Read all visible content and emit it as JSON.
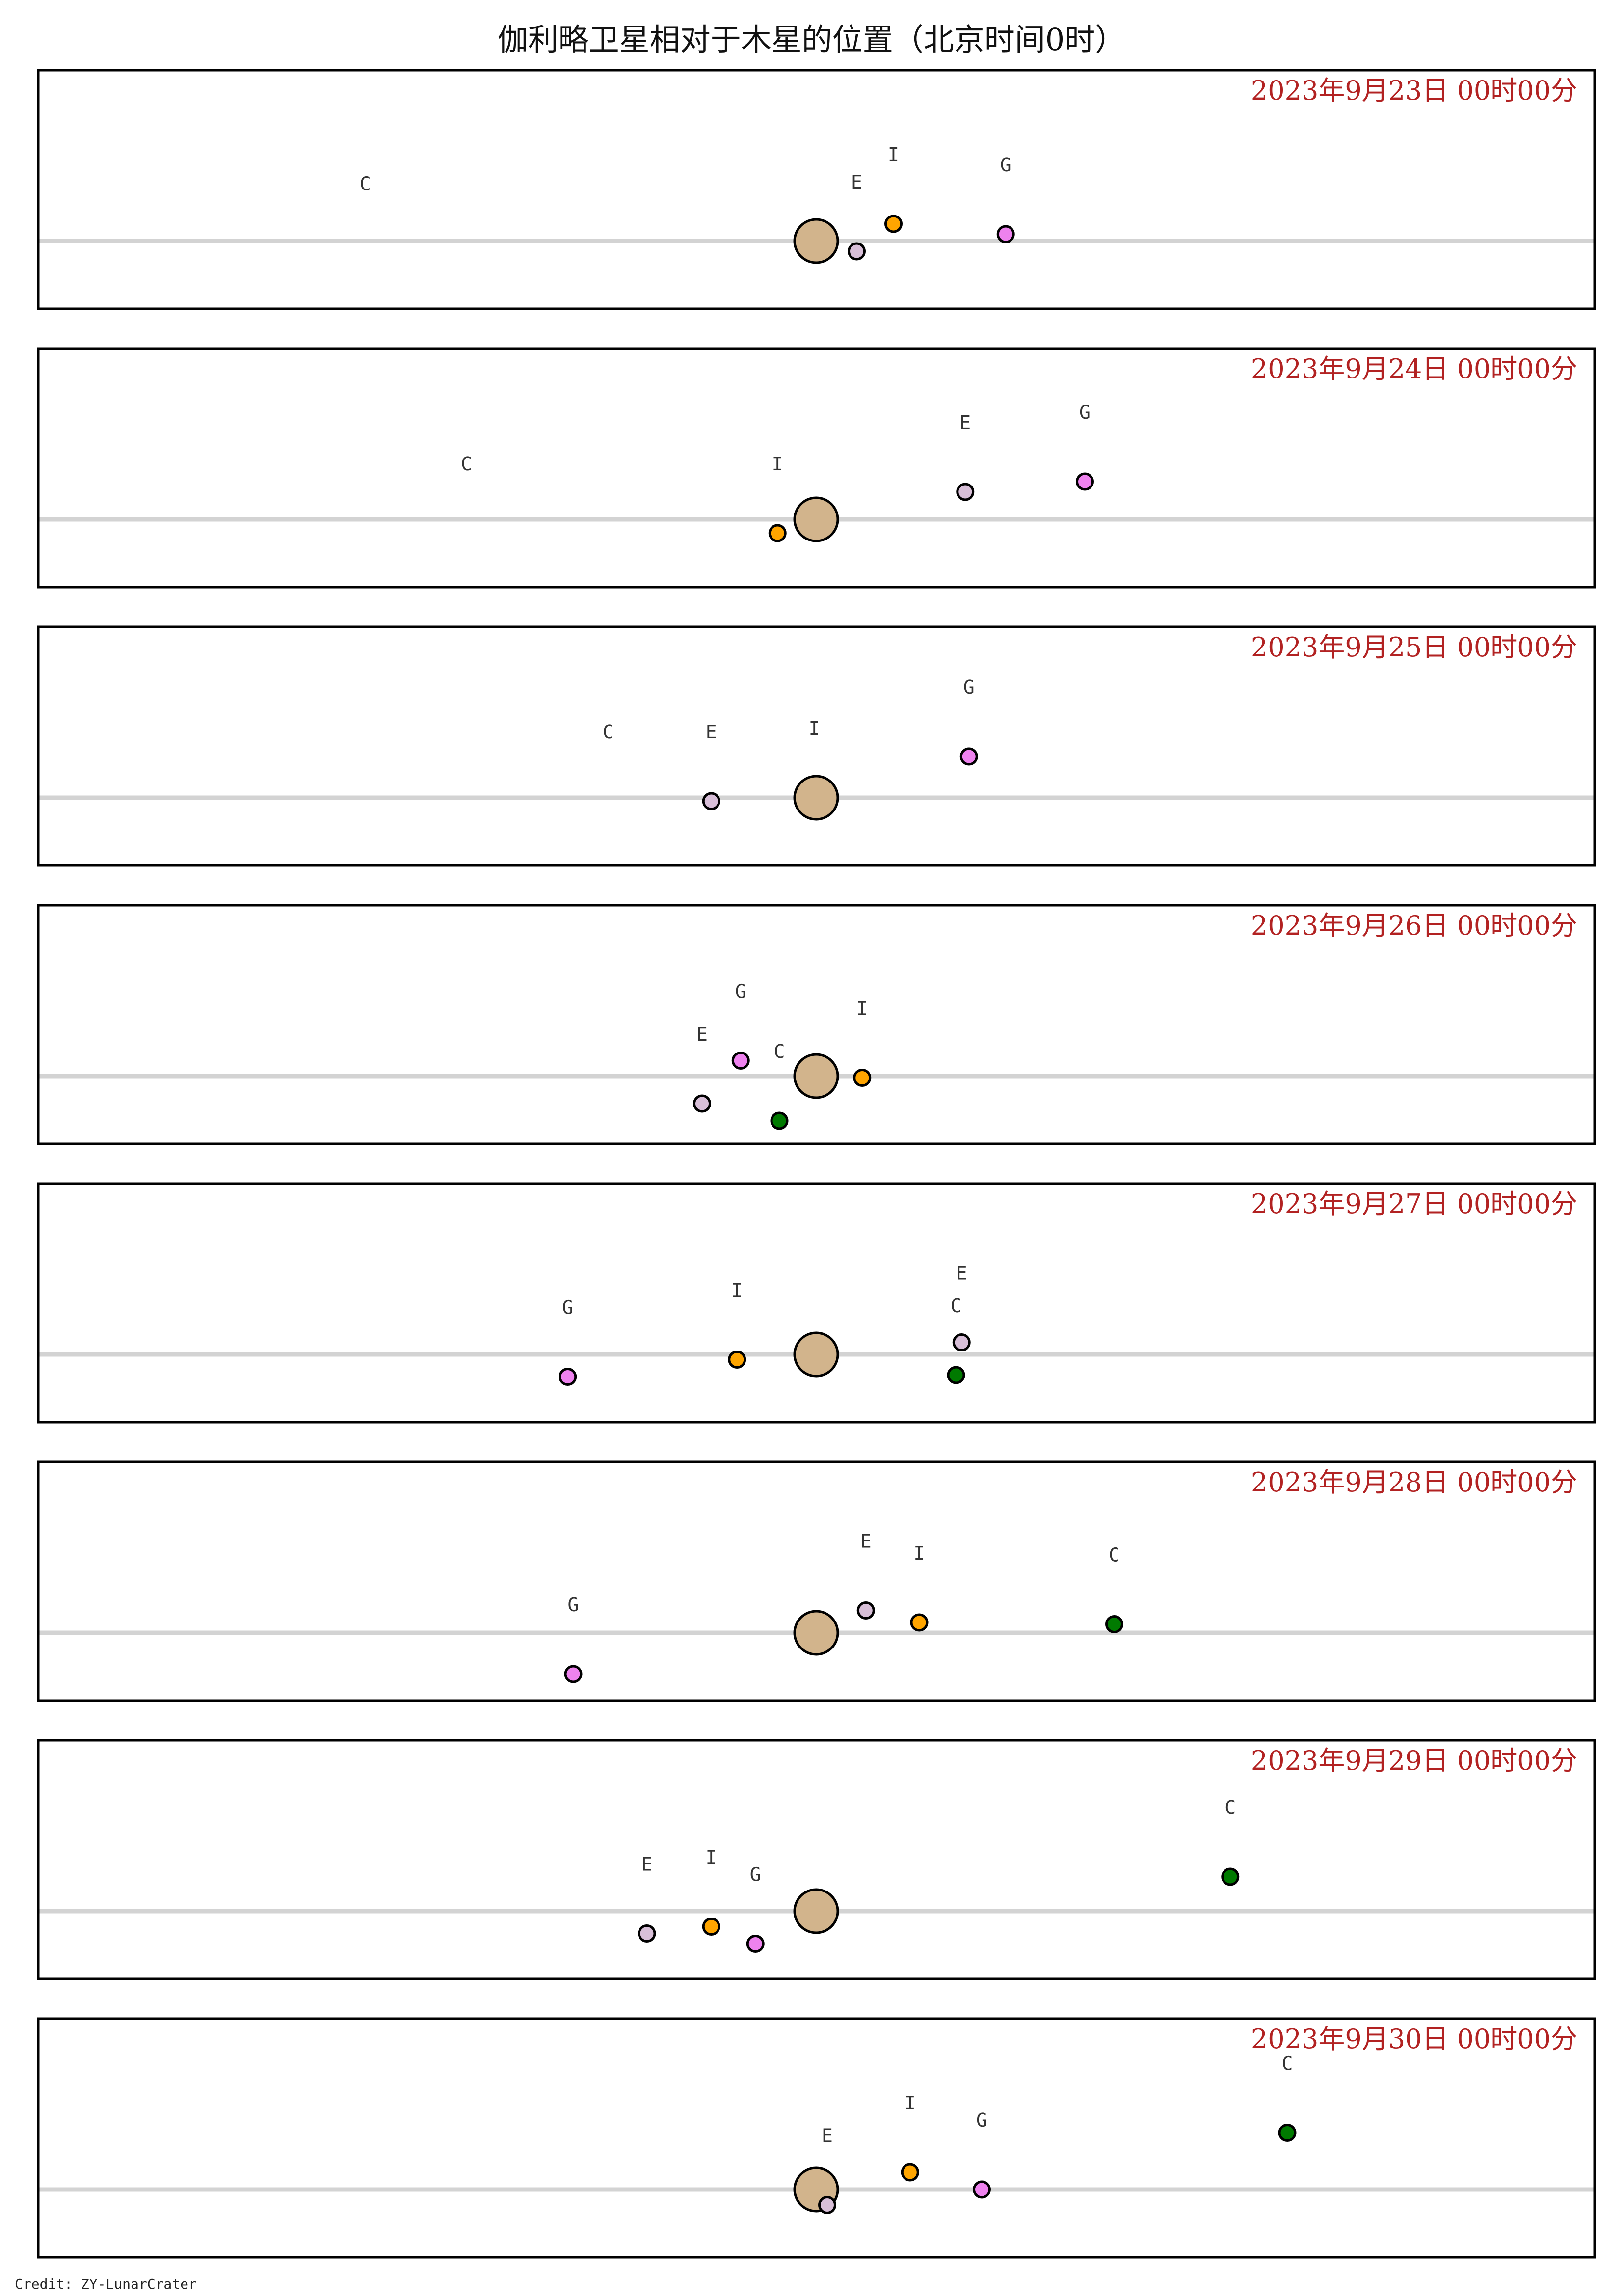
{
  "title": "伽利略卫星相对于木星的位置（北京时间0时）",
  "credit": "Credit: ZY-LunarCrater",
  "colors": {
    "jupiter": "#d2b48c",
    "Io": "#ffa500",
    "Europa": "#d8bfd8",
    "Ganymede": "#ee82ee",
    "Callisto": "#007a00",
    "equator": "#d3d3d3",
    "date_text": "#b22222",
    "frame": "#000000"
  },
  "chart_data": {
    "type": "scatter",
    "x_range": [
      -26.5,
      26.5
    ],
    "y_range": [
      -2.4,
      3.4
    ],
    "note_units": "jupiter-radius",
    "panels": [
      {
        "date_label": "2023年9月23日 00时00分",
        "satellites": [
          {
            "label": "C",
            "name": "Callisto",
            "x": -24.5,
            "y": -0.35,
            "visible": false
          },
          {
            "label": "E",
            "name": "Europa",
            "x": 2.2,
            "y": -0.3,
            "visible": true
          },
          {
            "label": "I",
            "name": "Io",
            "x": 4.2,
            "y": 0.5,
            "visible": true
          },
          {
            "label": "G",
            "name": "Ganymede",
            "x": 10.3,
            "y": 0.2,
            "visible": true
          }
        ]
      },
      {
        "date_label": "2023年9月24日 00时00分",
        "satellites": [
          {
            "label": "C",
            "name": "Callisto",
            "x": -19.0,
            "y": -0.4,
            "visible": false
          },
          {
            "label": "I",
            "name": "Io",
            "x": -2.1,
            "y": -0.4,
            "visible": true
          },
          {
            "label": "E",
            "name": "Europa",
            "x": 8.1,
            "y": 0.8,
            "visible": true
          },
          {
            "label": "G",
            "name": "Ganymede",
            "x": 14.6,
            "y": 1.1,
            "visible": true
          }
        ]
      },
      {
        "date_label": "2023年9月25日 00时00分",
        "satellites": [
          {
            "label": "C",
            "name": "Callisto",
            "x": -11.3,
            "y": -0.1,
            "visible": false
          },
          {
            "label": "E",
            "name": "Europa",
            "x": -5.7,
            "y": -0.1,
            "visible": true
          },
          {
            "label": "I",
            "name": "Io",
            "x": -0.1,
            "y": 0.0,
            "visible": false
          },
          {
            "label": "G",
            "name": "Ganymede",
            "x": 8.3,
            "y": 1.2,
            "visible": true
          }
        ]
      },
      {
        "date_label": "2023年9月26日 00时00分",
        "satellites": [
          {
            "label": "E",
            "name": "Europa",
            "x": -6.2,
            "y": -0.8,
            "visible": true
          },
          {
            "label": "G",
            "name": "Ganymede",
            "x": -4.1,
            "y": 0.45,
            "visible": true
          },
          {
            "label": "C",
            "name": "Callisto",
            "x": -2.0,
            "y": -1.3,
            "visible": true
          },
          {
            "label": "I",
            "name": "Io",
            "x": 2.5,
            "y": -0.05,
            "visible": true
          }
        ]
      },
      {
        "date_label": "2023年9月27日 00时00分",
        "satellites": [
          {
            "label": "G",
            "name": "Ganymede",
            "x": -13.5,
            "y": -0.65,
            "visible": true
          },
          {
            "label": "I",
            "name": "Io",
            "x": -4.3,
            "y": -0.15,
            "visible": true
          },
          {
            "label": "E",
            "name": "Europa",
            "x": 7.9,
            "y": 0.35,
            "visible": true
          },
          {
            "label": "C",
            "name": "Callisto",
            "x": 7.6,
            "y": -0.6,
            "visible": true
          }
        ]
      },
      {
        "date_label": "2023年9月28日 00时00分",
        "satellites": [
          {
            "label": "G",
            "name": "Ganymede",
            "x": -13.2,
            "y": -1.2,
            "visible": true
          },
          {
            "label": "E",
            "name": "Europa",
            "x": 2.7,
            "y": 0.65,
            "visible": true
          },
          {
            "label": "I",
            "name": "Io",
            "x": 5.6,
            "y": 0.3,
            "visible": true
          },
          {
            "label": "C",
            "name": "Callisto",
            "x": 16.2,
            "y": 0.25,
            "visible": true
          }
        ]
      },
      {
        "date_label": "2023年9月29日 00时00分",
        "satellites": [
          {
            "label": "E",
            "name": "Europa",
            "x": -9.2,
            "y": -0.65,
            "visible": true
          },
          {
            "label": "I",
            "name": "Io",
            "x": -5.7,
            "y": -0.45,
            "visible": true
          },
          {
            "label": "G",
            "name": "Ganymede",
            "x": -3.3,
            "y": -0.95,
            "visible": true
          },
          {
            "label": "C",
            "name": "Callisto",
            "x": 22.5,
            "y": 1.0,
            "visible": true
          }
        ]
      },
      {
        "date_label": "2023年9月30日 00时00分",
        "satellites": [
          {
            "label": "E",
            "name": "Europa",
            "x": 0.6,
            "y": -0.45,
            "visible": true
          },
          {
            "label": "I",
            "name": "Io",
            "x": 5.1,
            "y": 0.5,
            "visible": true
          },
          {
            "label": "G",
            "name": "Ganymede",
            "x": 9.0,
            "y": 0.0,
            "visible": true
          },
          {
            "label": "C",
            "name": "Callisto",
            "x": 25.6,
            "y": 1.65,
            "visible": true
          }
        ]
      }
    ]
  }
}
